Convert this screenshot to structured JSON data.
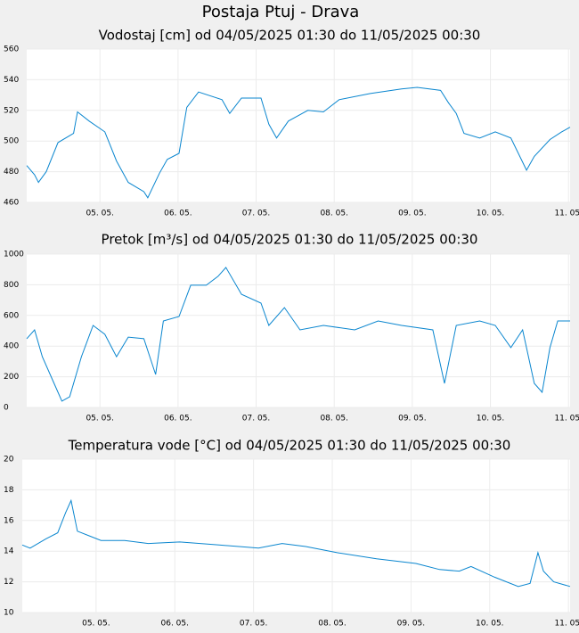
{
  "title": "Postaja Ptuj - Drava",
  "chart_data": [
    {
      "type": "line",
      "title": "Vodostaj [cm] od 04/05/2025 01:30 do 11/05/2025 00:30",
      "xlim": [
        0,
        6.958
      ],
      "ylim": [
        460,
        560
      ],
      "yticks": [
        460,
        480,
        500,
        520,
        540,
        560
      ],
      "grid": true,
      "xticks": [
        {
          "value": 0.9375,
          "label": "05. 05."
        },
        {
          "value": 1.9375,
          "label": "06. 05."
        },
        {
          "value": 2.9375,
          "label": "07. 05."
        },
        {
          "value": 3.9375,
          "label": "08. 05."
        },
        {
          "value": 4.9375,
          "label": "09. 05."
        },
        {
          "value": 5.9375,
          "label": "10. 05."
        },
        {
          "value": 6.9375,
          "label": "11. 05."
        }
      ],
      "x": [
        0,
        0.1,
        0.15,
        0.25,
        0.4,
        0.6,
        0.65,
        0.8,
        1.0,
        1.15,
        1.3,
        1.5,
        1.55,
        1.7,
        1.8,
        1.95,
        2.05,
        2.2,
        2.5,
        2.6,
        2.75,
        3.0,
        3.1,
        3.2,
        3.35,
        3.6,
        3.8,
        4.0,
        4.4,
        4.8,
        5.0,
        5.3,
        5.4,
        5.5,
        5.6,
        5.8,
        6.0,
        6.2,
        6.4,
        6.5,
        6.7,
        6.85,
        6.958
      ],
      "series": [
        {
          "color": "#0a86cf",
          "values": [
            484,
            478,
            473,
            480,
            499,
            505,
            519,
            513,
            506,
            487,
            473,
            467,
            463,
            479,
            488,
            492,
            522,
            532,
            527,
            518,
            528,
            528,
            511,
            502,
            513,
            520,
            519,
            527,
            531,
            534,
            535,
            533,
            525,
            518,
            505,
            502,
            506,
            502,
            481,
            490,
            501,
            506,
            509
          ]
        }
      ]
    },
    {
      "type": "line",
      "title": "Pretok [m³/s] od 04/05/2025 01:30 do 11/05/2025 00:30",
      "xlim": [
        0,
        6.958
      ],
      "ylim": [
        0,
        1000
      ],
      "yticks": [
        0,
        200,
        400,
        600,
        800,
        1000
      ],
      "grid": true,
      "xticks": [
        {
          "value": 0.9375,
          "label": "05. 05."
        },
        {
          "value": 1.9375,
          "label": "06. 05."
        },
        {
          "value": 2.9375,
          "label": "07. 05."
        },
        {
          "value": 3.9375,
          "label": "08. 05."
        },
        {
          "value": 4.9375,
          "label": "09. 05."
        },
        {
          "value": 5.9375,
          "label": "10. 05."
        },
        {
          "value": 6.9375,
          "label": "11. 05."
        }
      ],
      "x": [
        0,
        0.1,
        0.2,
        0.35,
        0.45,
        0.55,
        0.7,
        0.85,
        1.0,
        1.15,
        1.3,
        1.5,
        1.65,
        1.75,
        1.95,
        2.1,
        2.3,
        2.45,
        2.55,
        2.75,
        3.0,
        3.1,
        3.3,
        3.5,
        3.8,
        4.2,
        4.5,
        4.8,
        5.2,
        5.35,
        5.5,
        5.8,
        6.0,
        6.2,
        6.35,
        6.5,
        6.6,
        6.7,
        6.8,
        6.958
      ],
      "series": [
        {
          "color": "#0a86cf",
          "values": [
            448,
            506,
            331,
            157,
            41,
            70,
            331,
            535,
            477,
            331,
            459,
            448,
            215,
            564,
            593,
            797,
            797,
            855,
            913,
            738,
            680,
            535,
            651,
            506,
            535,
            506,
            564,
            535,
            506,
            157,
            535,
            564,
            535,
            390,
            506,
            157,
            99,
            390,
            564,
            564
          ]
        }
      ]
    },
    {
      "type": "line",
      "title": "Temperatura vode [°C] od 04/05/2025 01:30 do 11/05/2025 00:30",
      "xlim": [
        0,
        6.958
      ],
      "ylim": [
        10,
        20
      ],
      "yticks": [
        10,
        12,
        14,
        16,
        18,
        20
      ],
      "grid": true,
      "xticks": [
        {
          "value": 0.9375,
          "label": "05. 05."
        },
        {
          "value": 1.9375,
          "label": "06. 05."
        },
        {
          "value": 2.9375,
          "label": "07. 05."
        },
        {
          "value": 3.9375,
          "label": "08. 05."
        },
        {
          "value": 4.9375,
          "label": "09. 05."
        },
        {
          "value": 5.9375,
          "label": "10. 05."
        },
        {
          "value": 6.9375,
          "label": "11. 05."
        }
      ],
      "x": [
        0,
        0.1,
        0.3,
        0.45,
        0.55,
        0.62,
        0.7,
        0.85,
        1.0,
        1.3,
        1.6,
        2.0,
        2.5,
        3.0,
        3.3,
        3.6,
        4.0,
        4.5,
        5.0,
        5.3,
        5.55,
        5.7,
        6.0,
        6.3,
        6.45,
        6.55,
        6.62,
        6.75,
        6.958
      ],
      "series": [
        {
          "color": "#0a86cf",
          "values": [
            14.4,
            14.2,
            14.8,
            15.2,
            16.5,
            17.3,
            15.3,
            15.0,
            14.7,
            14.7,
            14.5,
            14.6,
            14.4,
            14.2,
            14.5,
            14.3,
            13.9,
            13.5,
            13.2,
            12.8,
            12.7,
            13.0,
            12.3,
            11.7,
            11.9,
            13.9,
            12.7,
            12.0,
            11.7
          ]
        }
      ]
    }
  ]
}
